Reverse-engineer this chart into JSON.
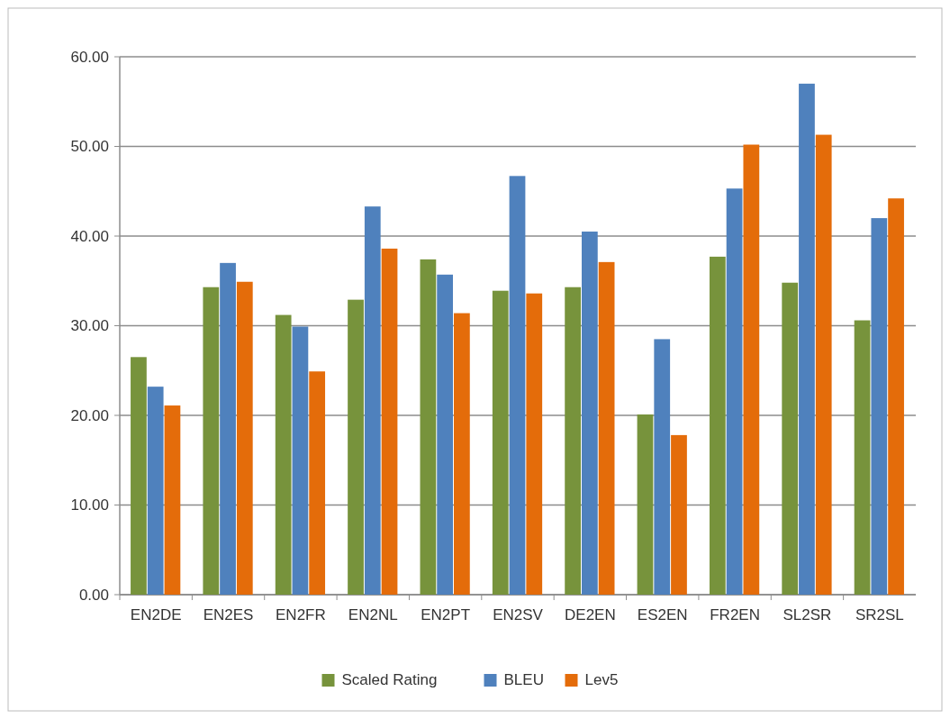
{
  "chart_data": {
    "type": "bar",
    "categories": [
      "EN2DE",
      "EN2ES",
      "EN2FR",
      "EN2NL",
      "EN2PT",
      "EN2SV",
      "DE2EN",
      "ES2EN",
      "FR2EN",
      "SL2SR",
      "SR2SL"
    ],
    "series": [
      {
        "name": "Scaled Rating",
        "color": "#77933c",
        "values": [
          26.5,
          34.3,
          31.2,
          32.9,
          37.4,
          33.9,
          34.3,
          20.1,
          37.7,
          34.8,
          30.6
        ]
      },
      {
        "name": "BLEU",
        "color": "#4f81bd",
        "values": [
          23.2,
          37.0,
          29.9,
          43.3,
          35.7,
          46.7,
          40.5,
          28.5,
          45.3,
          57.0,
          42.0
        ]
      },
      {
        "name": "Lev5",
        "color": "#e46c0a",
        "values": [
          21.1,
          34.9,
          24.9,
          38.6,
          31.4,
          33.6,
          37.1,
          17.8,
          50.2,
          51.3,
          44.2
        ]
      }
    ],
    "ylim": [
      0,
      60
    ],
    "yticks": [
      {
        "value": 0,
        "label": "0.00"
      },
      {
        "value": 10,
        "label": "10.00"
      },
      {
        "value": 20,
        "label": "20.00"
      },
      {
        "value": 30,
        "label": "30.00"
      },
      {
        "value": 40,
        "label": "40.00"
      },
      {
        "value": 50,
        "label": "50.00"
      },
      {
        "value": 60,
        "label": "60.00"
      }
    ],
    "grid": "y",
    "legend": "bottom"
  }
}
